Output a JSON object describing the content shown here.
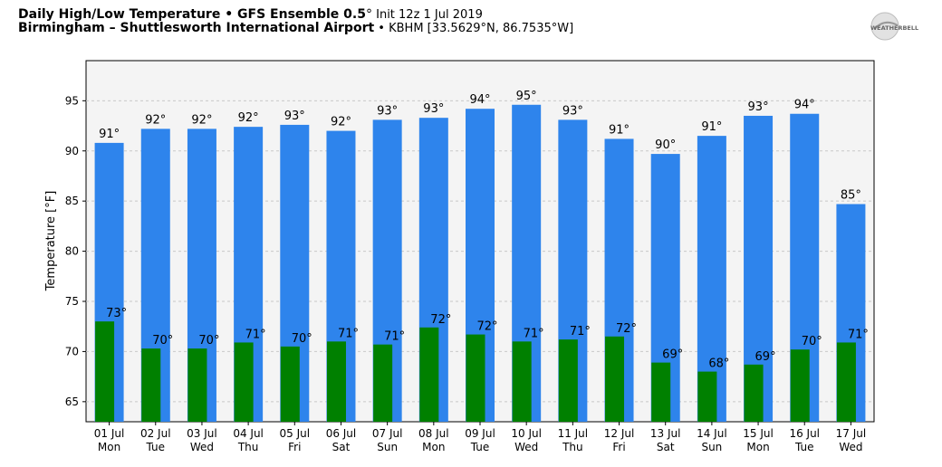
{
  "header": {
    "line1_bold": "Daily High/Low Temperature • GFS Ensemble 0.5",
    "line1_deg": "°",
    "line1_rest": " Init 12z 1 Jul 2019",
    "line2_bold": "Birmingham – Shuttlesworth International Airport",
    "line2_rest": " • KBHM [33.5629°N, 86.7535°W]"
  },
  "logo": {
    "text": "WEATHERBELL"
  },
  "colors": {
    "high": "#2e84ec",
    "low": "#008000",
    "plot_bg": "#f4f4f4",
    "grid": "#c8c8c8"
  },
  "chart_data": {
    "type": "bar",
    "ylabel": "Temperature [°F]",
    "ylim": [
      63,
      99
    ],
    "yticks": [
      65,
      70,
      75,
      80,
      85,
      90,
      95
    ],
    "grid": "horizontal dashed",
    "categories": [
      {
        "date": "01 Jul",
        "day": "Mon"
      },
      {
        "date": "02 Jul",
        "day": "Tue"
      },
      {
        "date": "03 Jul",
        "day": "Wed"
      },
      {
        "date": "04 Jul",
        "day": "Thu"
      },
      {
        "date": "05 Jul",
        "day": "Fri"
      },
      {
        "date": "06 Jul",
        "day": "Sat"
      },
      {
        "date": "07 Jul",
        "day": "Sun"
      },
      {
        "date": "08 Jul",
        "day": "Mon"
      },
      {
        "date": "09 Jul",
        "day": "Tue"
      },
      {
        "date": "10 Jul",
        "day": "Wed"
      },
      {
        "date": "11 Jul",
        "day": "Thu"
      },
      {
        "date": "12 Jul",
        "day": "Fri"
      },
      {
        "date": "13 Jul",
        "day": "Sat"
      },
      {
        "date": "14 Jul",
        "day": "Sun"
      },
      {
        "date": "15 Jul",
        "day": "Mon"
      },
      {
        "date": "16 Jul",
        "day": "Tue"
      },
      {
        "date": "17 Jul",
        "day": "Wed"
      }
    ],
    "series": [
      {
        "values": [
          90.8,
          92.2,
          92.2,
          92.4,
          92.6,
          92.0,
          93.1,
          93.3,
          94.2,
          94.6,
          93.1,
          91.2,
          89.7,
          91.5,
          93.5,
          93.7,
          84.7
        ],
        "labels": [
          "91°",
          "92°",
          "92°",
          "92°",
          "93°",
          "92°",
          "93°",
          "93°",
          "94°",
          "95°",
          "93°",
          "91°",
          "90°",
          "91°",
          "93°",
          "94°",
          "85°"
        ]
      },
      {
        "values": [
          73.0,
          70.3,
          70.3,
          70.9,
          70.5,
          71.0,
          70.7,
          72.4,
          71.7,
          71.0,
          71.2,
          71.5,
          68.9,
          68.0,
          68.7,
          70.2,
          70.9
        ],
        "labels": [
          "73°",
          "70°",
          "70°",
          "71°",
          "70°",
          "71°",
          "71°",
          "72°",
          "72°",
          "71°",
          "71°",
          "72°",
          "69°",
          "68°",
          "69°",
          "70°",
          "71°"
        ]
      }
    ]
  }
}
